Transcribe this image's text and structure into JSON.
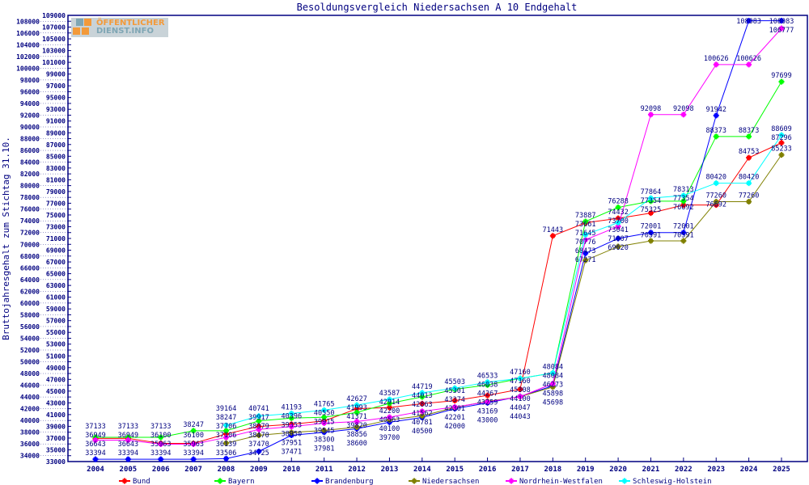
{
  "chart_data": {
    "type": "line",
    "title": "Besoldungsvergleich Niedersachsen A 10 Endgehalt",
    "xlabel": "",
    "ylabel": "Bruttojahresgehalt zum Stichtag 31.10.",
    "ylim": [
      33000,
      109000
    ],
    "ytick_step": 1000,
    "grid": false,
    "legend_placement": "bottom",
    "x": [
      2004,
      2005,
      2006,
      2007,
      2008,
      2009,
      2010,
      2011,
      2012,
      2013,
      2014,
      2015,
      2016,
      2017,
      2018,
      2019,
      2020,
      2021,
      2022,
      2023,
      2024,
      2025
    ],
    "series": [
      {
        "name": "Bund",
        "color": "#ff0000",
        "values": [
          36949,
          36949,
          36100,
          36100,
          37706,
          38979,
          39353,
          39915,
          41993,
          42200,
          42863,
          43374,
          44267,
          45308,
          71443,
          73661,
          74432,
          75325,
          76692,
          76692,
          84753,
          87296
        ]
      },
      {
        "name": "Bayern",
        "color": "#00ff00",
        "values": [
          37133,
          37133,
          37133,
          38247,
          38247,
          39917,
          40396,
          40550,
          41371,
          42914,
          44013,
          45301,
          46038,
          47160,
          48084,
          73887,
          76288,
          77354,
          77354,
          88373,
          88373,
          97699
        ]
      },
      {
        "name": "Brandenburg",
        "color": "#0000ff",
        "values": [
          33394,
          33394,
          33394,
          33394,
          33506,
          34725,
          37471,
          37981,
          38600,
          39700,
          40500,
          42000,
          43000,
          44100,
          45898,
          68473,
          71007,
          72001,
          72001,
          91942,
          108083,
          108083
        ]
      },
      {
        "name": "Niedersachsen",
        "color": "#808000",
        "values": [
          null,
          null,
          null,
          null,
          36139,
          37470,
          37951,
          38300,
          38856,
          40100,
          40781,
          42201,
          43259,
          44043,
          45698,
          67271,
          69620,
          70591,
          70591,
          77260,
          77260,
          85233
        ]
      },
      {
        "name": "Nordrhein-Westfalen",
        "color": "#ff00ff",
        "values": [
          36643,
          36643,
          35963,
          35963,
          37106,
          38470,
          38950,
          39545,
          39820,
          40563,
          41562,
          42301,
          43169,
          44047,
          46273,
          70776,
          73041,
          92098,
          92098,
          100626,
          100626,
          106777
        ]
      },
      {
        "name": "Schleswig-Holstein",
        "color": "#00ffff",
        "values": [
          null,
          null,
          null,
          null,
          39164,
          40741,
          41193,
          41765,
          42627,
          43587,
          44719,
          45503,
          46533,
          47160,
          48084,
          71645,
          73700,
          77864,
          78313,
          80420,
          80420,
          88609
        ]
      }
    ]
  },
  "logo": {
    "line1": "ÖFFENTLICHER",
    "line2": "DIENST.INFO"
  },
  "colors": {
    "axis": "#000080",
    "text": "#000080"
  }
}
